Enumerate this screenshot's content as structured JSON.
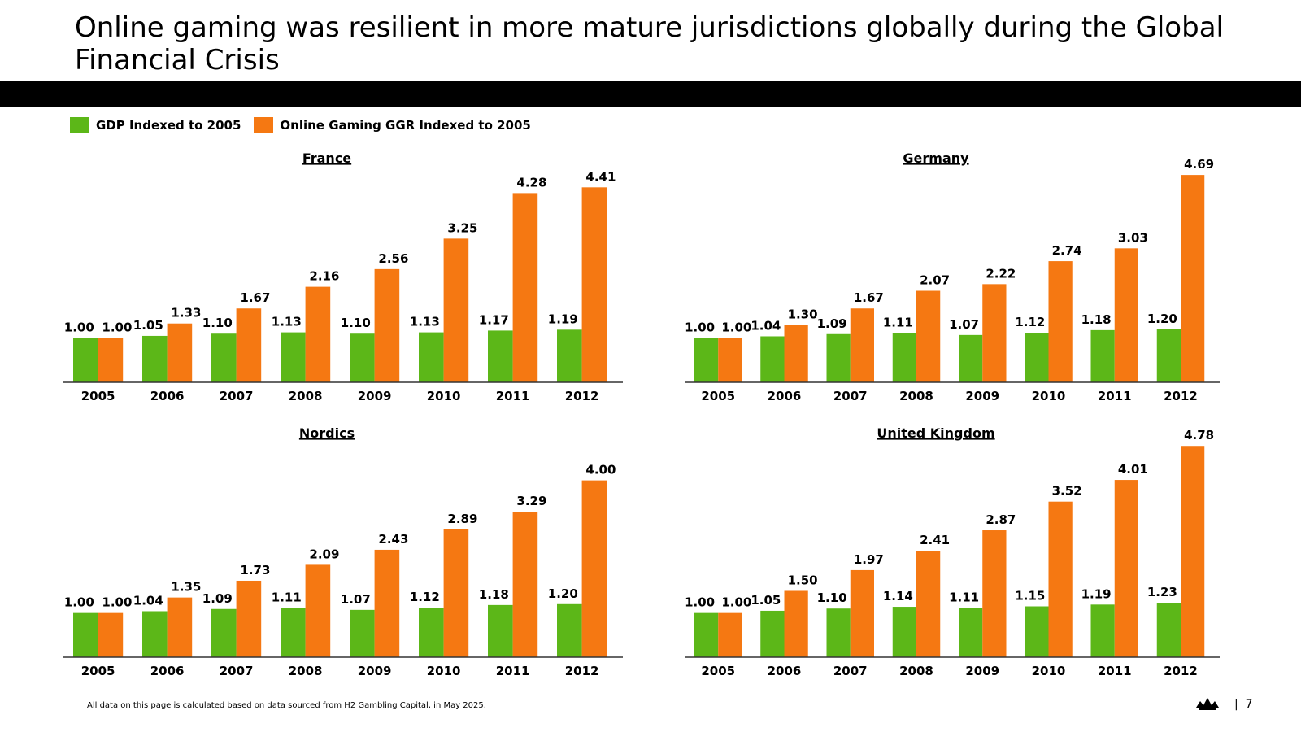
{
  "header": {
    "title": "Online gaming was resilient in more mature jurisdictions globally during the Global Financial Crisis"
  },
  "colors": {
    "gdp": "#5cb718",
    "ggr": "#f57812",
    "band": "#000000"
  },
  "legend": {
    "gdp_label": "GDP Indexed to 2005",
    "ggr_label": "Online Gaming GGR Indexed to 2005"
  },
  "chart_data": [
    {
      "type": "bar",
      "title": "France",
      "categories": [
        "2005",
        "2006",
        "2007",
        "2008",
        "2009",
        "2010",
        "2011",
        "2012"
      ],
      "series": [
        {
          "name": "GDP Indexed to 2005",
          "values": [
            1.0,
            1.05,
            1.1,
            1.13,
            1.1,
            1.13,
            1.17,
            1.19
          ]
        },
        {
          "name": "Online Gaming GGR Indexed to 2005",
          "values": [
            1.0,
            1.33,
            1.67,
            2.16,
            2.56,
            3.25,
            4.28,
            4.41
          ]
        }
      ],
      "ylim": [
        0,
        4.6
      ]
    },
    {
      "type": "bar",
      "title": "Germany",
      "categories": [
        "2005",
        "2006",
        "2007",
        "2008",
        "2009",
        "2010",
        "2011",
        "2012"
      ],
      "series": [
        {
          "name": "GDP Indexed to 2005",
          "values": [
            1.0,
            1.04,
            1.09,
            1.11,
            1.07,
            1.12,
            1.18,
            1.2
          ]
        },
        {
          "name": "Online Gaming GGR Indexed to 2005",
          "values": [
            1.0,
            1.3,
            1.67,
            2.07,
            2.22,
            2.74,
            3.03,
            4.69
          ]
        }
      ],
      "ylim": [
        0,
        4.6
      ]
    },
    {
      "type": "bar",
      "title": "Nordics",
      "categories": [
        "2005",
        "2006",
        "2007",
        "2008",
        "2009",
        "2010",
        "2011",
        "2012"
      ],
      "series": [
        {
          "name": "GDP Indexed to 2005",
          "values": [
            1.0,
            1.04,
            1.09,
            1.11,
            1.07,
            1.12,
            1.18,
            1.2
          ]
        },
        {
          "name": "Online Gaming GGR Indexed to 2005",
          "values": [
            1.0,
            1.35,
            1.73,
            2.09,
            2.43,
            2.89,
            3.29,
            4.0
          ]
        }
      ],
      "ylim": [
        0,
        4.6
      ]
    },
    {
      "type": "bar",
      "title": "United Kingdom",
      "categories": [
        "2005",
        "2006",
        "2007",
        "2008",
        "2009",
        "2010",
        "2011",
        "2012"
      ],
      "series": [
        {
          "name": "GDP Indexed to 2005",
          "values": [
            1.0,
            1.05,
            1.1,
            1.14,
            1.11,
            1.15,
            1.19,
            1.23
          ]
        },
        {
          "name": "Online Gaming GGR Indexed to 2005",
          "values": [
            1.0,
            1.5,
            1.97,
            2.41,
            2.87,
            3.52,
            4.01,
            4.78
          ]
        }
      ],
      "ylim": [
        0,
        4.6
      ]
    }
  ],
  "footer": {
    "note": "All data on this page is calculated based on data sourced from H2 Gambling Capital, in May 2025.",
    "page": "|  7"
  }
}
